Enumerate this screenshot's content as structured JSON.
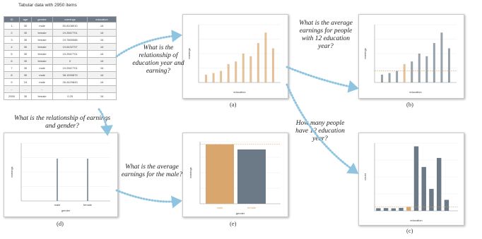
{
  "table": {
    "title": "Tabular data with 2950 items",
    "columns": [
      "ID",
      "age",
      "gender",
      "earnings",
      "education"
    ],
    "rows": [
      [
        "1",
        "30",
        "male",
        "50.8108910",
        "16"
      ],
      [
        "2",
        "30",
        "female",
        "19.2567701",
        "16"
      ],
      [
        "3",
        "30",
        "female",
        "19.7869588",
        "16"
      ],
      [
        "4",
        "30",
        "female",
        "19.6432797",
        "16"
      ],
      [
        "5",
        "30",
        "female",
        "19.2567701",
        "16"
      ],
      [
        "6",
        "30",
        "female",
        "0",
        "16"
      ],
      [
        "7",
        "30",
        "male",
        "19.2567701",
        "16"
      ],
      [
        "8",
        "30",
        "male",
        "38.1599879",
        "16"
      ],
      [
        "9",
        "24",
        "male",
        "26.4429843",
        "16"
      ],
      [
        "...",
        "...",
        "...",
        "...",
        "..."
      ],
      [
        "2950",
        "30",
        "female",
        "0.25",
        "16"
      ]
    ]
  },
  "questions": {
    "q_a": "What is the relationship of education year and earning?",
    "q_b": "What is the average earnings for people with 12 education year?",
    "q_c": "How many people have 12 education year?",
    "q_d": "What is the relationship of earnings and gender?",
    "q_e": "What is the average earnings for the male?"
  },
  "captions": {
    "a": "(a)",
    "b": "(b)",
    "c": "(c)",
    "d": "(d)",
    "e": "(e)"
  },
  "colors": {
    "highlight": "#d9a66e",
    "base": "#6b7a86",
    "arrow": "#8fc4e0"
  },
  "chart_data": [
    {
      "id": "a",
      "type": "scatter",
      "xlabel": "education",
      "ylabel": "earnings",
      "x": [
        9,
        10,
        11,
        12,
        13,
        14,
        15,
        16,
        17,
        18
      ],
      "top": [
        15,
        18,
        22,
        35,
        40,
        55,
        50,
        75,
        95,
        65
      ]
    },
    {
      "id": "b",
      "type": "scatter",
      "xlabel": "education",
      "ylabel": "earnings",
      "x": [
        9,
        10,
        11,
        12,
        13,
        14,
        15,
        16,
        17,
        18
      ],
      "top": [
        15,
        18,
        22,
        35,
        40,
        55,
        50,
        75,
        95,
        65
      ],
      "highlight_x": 12
    },
    {
      "id": "c",
      "type": "bar",
      "xlabel": "education",
      "ylabel": "count",
      "categories": [
        "8",
        "9",
        "10",
        "11",
        "12",
        "13",
        "14",
        "15",
        "16",
        "17",
        "18"
      ],
      "values": [
        40,
        42,
        38,
        45,
        60,
        1000,
        680,
        340,
        820,
        170,
        0
      ],
      "highlight_category": "12"
    },
    {
      "id": "d",
      "type": "scatter",
      "xlabel": "gender",
      "ylabel": "earnings",
      "categories": [
        "male",
        "female"
      ]
    },
    {
      "id": "e",
      "type": "bar",
      "xlabel": "gender",
      "ylabel": "earnings",
      "categories": [
        "male",
        "female"
      ],
      "values": [
        23,
        21
      ],
      "ylim": [
        0,
        24
      ],
      "highlight_category": "male"
    }
  ]
}
